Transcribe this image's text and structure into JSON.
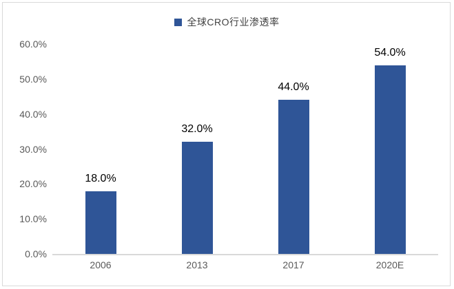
{
  "chart_data": {
    "type": "bar",
    "title": "",
    "legend": "全球CRO行业渗透率",
    "legend_position": "top",
    "categories": [
      "2006",
      "2013",
      "2017",
      "2020E"
    ],
    "values": [
      18.0,
      32.0,
      44.0,
      54.0
    ],
    "data_labels": [
      "18.0%",
      "32.0%",
      "44.0%",
      "54.0%"
    ],
    "y_ticks": [
      {
        "value": 60,
        "label": "60.0%"
      },
      {
        "value": 50,
        "label": "50.0%"
      },
      {
        "value": 40,
        "label": "40.0%"
      },
      {
        "value": 30,
        "label": "30.0%"
      },
      {
        "value": 20,
        "label": "20.0%"
      },
      {
        "value": 10,
        "label": "10.0%"
      },
      {
        "value": 0,
        "label": "0.0%"
      }
    ],
    "ylim": [
      0,
      60
    ],
    "grid": false,
    "colors": {
      "bar": "#2f5597",
      "axis_text": "#595959",
      "data_label": "#000000",
      "baseline": "#d9d9d9",
      "frame_border": "#d9d9d9",
      "legend_text": "#404040",
      "background": "#ffffff"
    }
  }
}
